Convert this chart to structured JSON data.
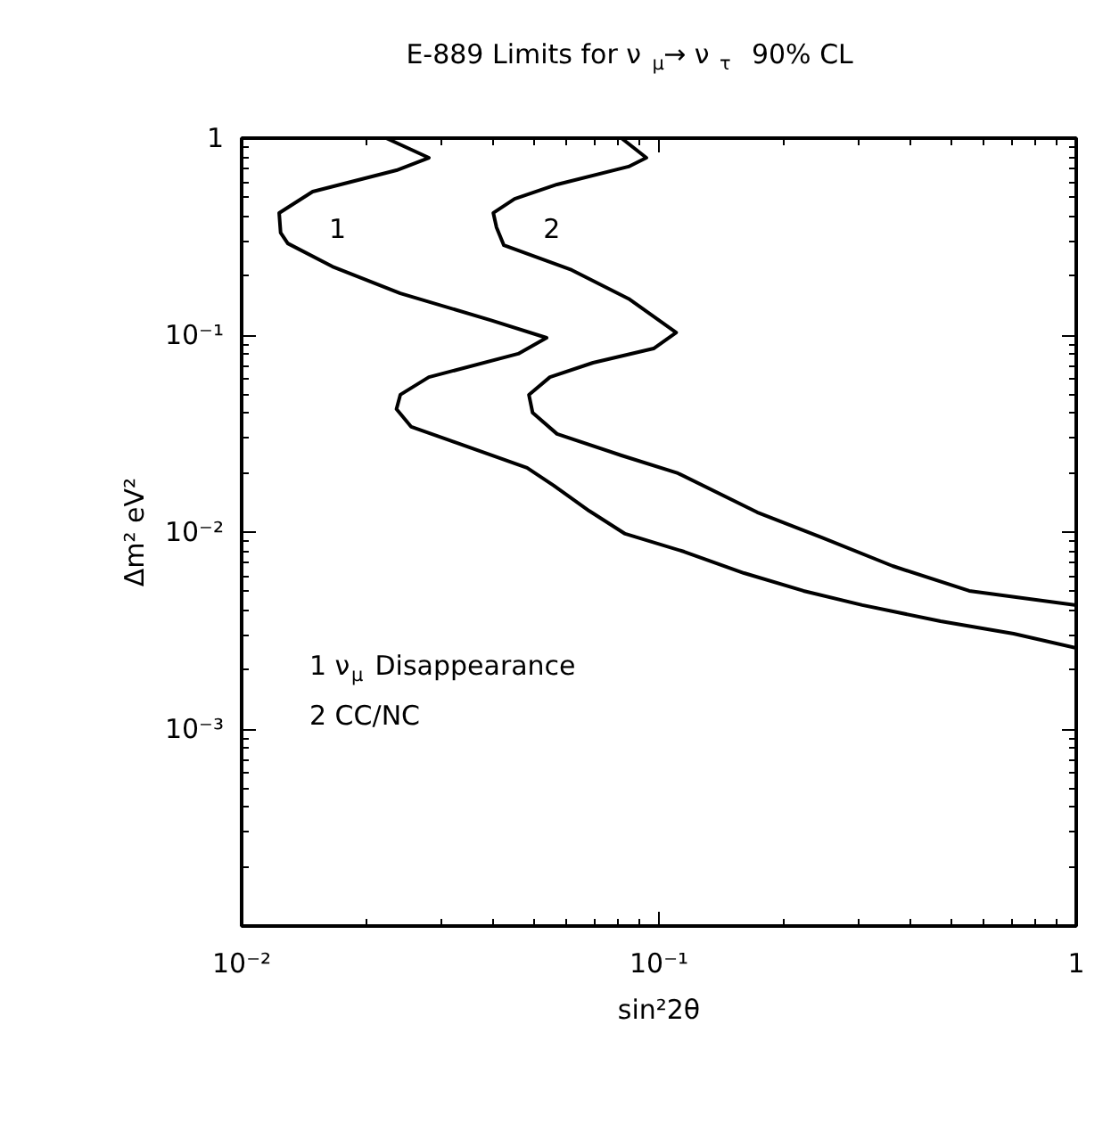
{
  "chart_data": {
    "type": "line",
    "title": "E-889 Limits for ν$_{μ}$→  ν$_{τ}$  90% CL",
    "xlabel": "sin²2θ",
    "ylabel": "Δm² eV²",
    "log": "xy",
    "grid": false,
    "marker": "none",
    "line_style": "solid",
    "xlim": [
      0.01,
      1
    ],
    "ylim": [
      0.0001,
      1
    ],
    "xticks": [
      {
        "value": 0.01,
        "label": "10⁻²"
      },
      {
        "value": 0.1,
        "label": "10⁻¹"
      },
      1
    ],
    "yticks": [
      {
        "value": 0.001,
        "label": "10⁻³"
      },
      {
        "value": 0.01,
        "label": "10⁻²"
      },
      {
        "value": 0.1,
        "label": "10⁻¹"
      },
      1
    ],
    "series": [
      {
        "name": "1",
        "color": "#000000",
        "x": [
          0.0222,
          0.0281,
          0.0235,
          0.0148,
          0.0123,
          0.0124,
          0.0129,
          0.0165,
          0.024,
          0.0396,
          0.0538,
          0.046,
          0.0281,
          0.024,
          0.0235,
          0.0255,
          0.031,
          0.0483,
          0.056,
          0.0681,
          0.083,
          0.115,
          0.16,
          0.222,
          0.307,
          0.473,
          0.708,
          1.0
        ],
        "values": [
          1.0,
          0.795,
          0.687,
          0.535,
          0.417,
          0.331,
          0.292,
          0.223,
          0.163,
          0.119,
          0.0969,
          0.0804,
          0.0612,
          0.0498,
          0.0421,
          0.0342,
          0.0296,
          0.0212,
          0.0172,
          0.0128,
          0.0098,
          0.00795,
          0.00619,
          0.00503,
          0.00426,
          0.00353,
          0.00305,
          0.00258
        ]
      },
      {
        "name": "2",
        "color": "#000000",
        "x": [
          0.0813,
          0.0933,
          0.0846,
          0.057,
          0.0451,
          0.0401,
          0.0408,
          0.0425,
          0.0618,
          0.0846,
          0.11,
          0.0971,
          0.0695,
          0.0548,
          0.0488,
          0.0498,
          0.057,
          0.0813,
          0.111,
          0.172,
          0.245,
          0.363,
          0.554,
          1.0
        ],
        "values": [
          1.0,
          0.795,
          0.717,
          0.582,
          0.492,
          0.417,
          0.353,
          0.286,
          0.214,
          0.153,
          0.103,
          0.0855,
          0.0724,
          0.0612,
          0.0498,
          0.0404,
          0.0315,
          0.0245,
          0.0199,
          0.0126,
          0.0094,
          0.00673,
          0.00503,
          0.00426
        ]
      }
    ],
    "annotations": [
      "1 ν$_{μ}$ Disappearance",
      "2 CC/NC"
    ]
  }
}
